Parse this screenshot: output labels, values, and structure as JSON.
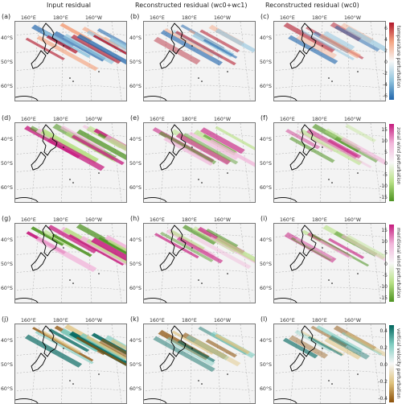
{
  "column_titles": [
    "Input residual",
    "Reconstructed residual (wc0+wc1)",
    "Reconstructed residual (wc0)"
  ],
  "panel_letters": [
    "(a)",
    "(b)",
    "(c)",
    "(d)",
    "(e)",
    "(f)",
    "(g)",
    "(h)",
    "(i)",
    "(j)",
    "(k)",
    "(l)"
  ],
  "lon_ticks": [
    "160°E",
    "180°E",
    "160°W"
  ],
  "lat_ticks": [
    "40°S",
    "50°S",
    "60°S"
  ],
  "rows": [
    {
      "variable": "temperature perturbation",
      "colormap": "RdBu_r",
      "colorbar_ticks": [
        "6",
        "4",
        "2",
        "0",
        "-2",
        "-4",
        "-6"
      ],
      "colors": {
        "neg": "#2166ac",
        "neg_light": "#92c5de",
        "pos_light": "#f4a582",
        "pos": "#b2182b"
      }
    },
    {
      "variable": "zonal wind perturbation",
      "colormap": "PiYG_r",
      "colorbar_ticks": [
        "15",
        "10",
        "5",
        "0",
        "-5",
        "-10",
        "-15"
      ],
      "colors": {
        "neg": "#4d9221",
        "neg_light": "#b8e186",
        "pos_light": "#f1b6da",
        "pos": "#c51b7d"
      }
    },
    {
      "variable": "meridional wind perturbation",
      "colormap": "PiYG_r",
      "colorbar_ticks": [
        "15",
        "10",
        "5",
        "0",
        "-5",
        "-10",
        "-15"
      ],
      "colors": {
        "neg": "#4d9221",
        "neg_light": "#b8e186",
        "pos_light": "#f1b6da",
        "pos": "#c51b7d"
      }
    },
    {
      "variable": "vertical velocity perturbation",
      "colormap": "BrBG_r",
      "colorbar_ticks": [
        "0.4",
        "0.2",
        "0.0",
        "-0.2",
        "-0.4"
      ],
      "colors": {
        "neg": "#8c510a",
        "neg_light": "#dfc27d",
        "pos_light": "#80cdc1",
        "pos": "#01665e"
      }
    }
  ]
}
